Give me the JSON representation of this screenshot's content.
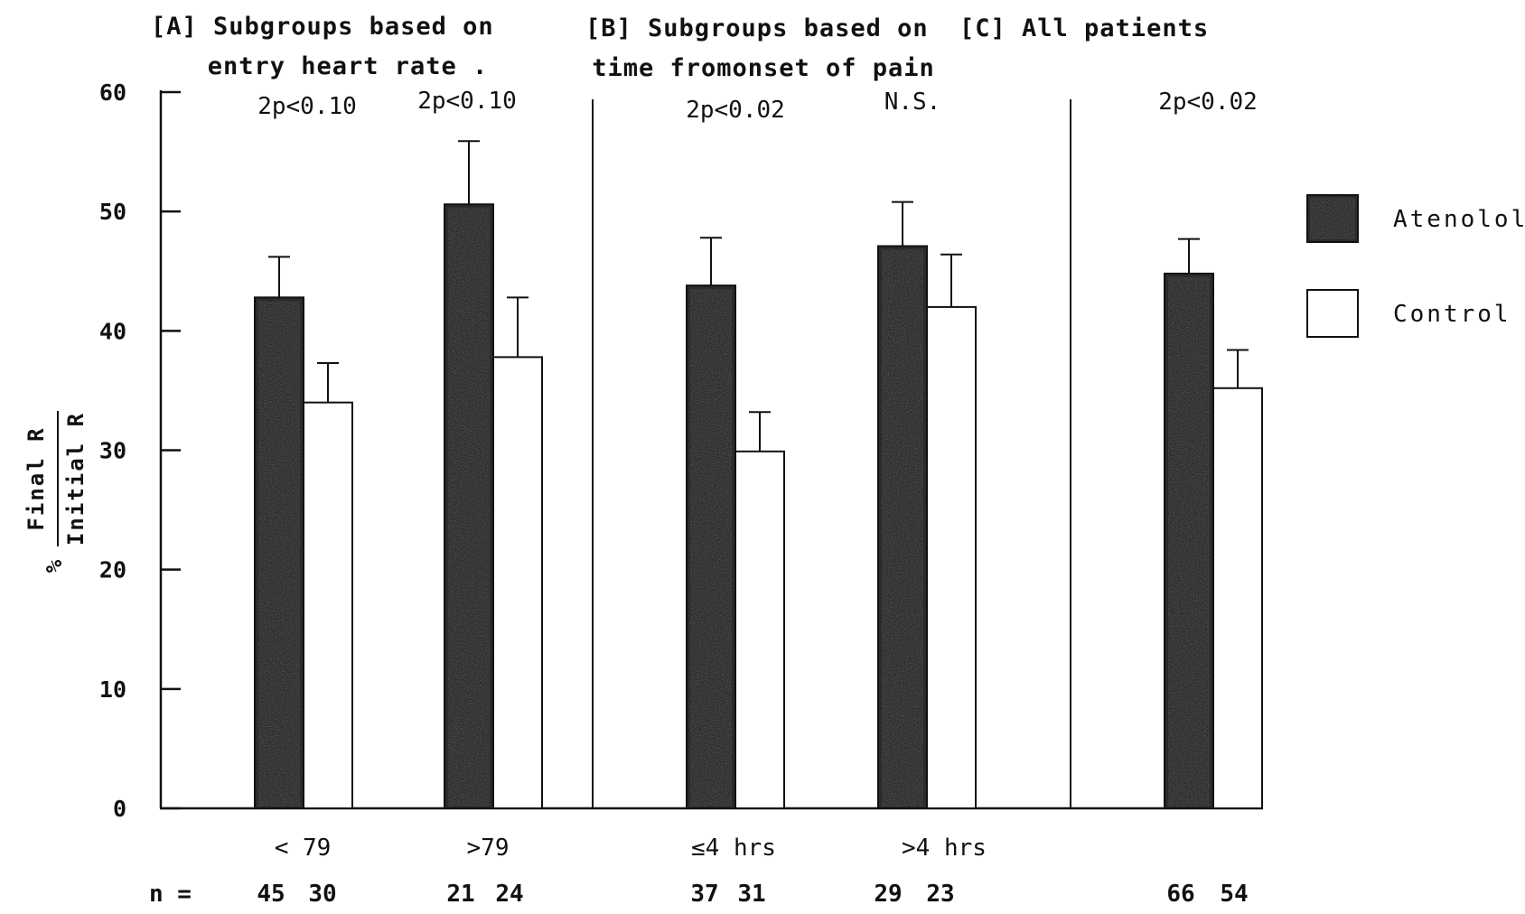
{
  "chart_data": {
    "type": "bar",
    "panels": [
      {
        "header": [
          "[A]  Subgroups based on",
          "entry heart rate ."
        ],
        "groups": [
          {
            "category": "< 79",
            "p_value": "2p<0.10",
            "n": [
              "45",
              "30"
            ],
            "atenolol": 42.8,
            "atenolol_err": 3.4,
            "control": 34.0,
            "control_err": 3.3
          },
          {
            "category": ">79",
            "p_value": "2p<0.10",
            "n": [
              "21",
              "24"
            ],
            "atenolol": 50.6,
            "atenolol_err": 5.3,
            "control": 37.8,
            "control_err": 5.0
          }
        ]
      },
      {
        "header": [
          "[B] Subgroups based on",
          "time fromonset of pain"
        ],
        "groups": [
          {
            "category": "≤4 hrs",
            "p_value": "2p<0.02",
            "n": [
              "37",
              "31"
            ],
            "atenolol": 43.8,
            "atenolol_err": 4.0,
            "control": 29.9,
            "control_err": 3.3
          },
          {
            "category": ">4 hrs",
            "p_value": "N.S.",
            "n": [
              "29",
              "23"
            ],
            "atenolol": 47.1,
            "atenolol_err": 3.7,
            "control": 42.0,
            "control_err": 4.4
          }
        ]
      },
      {
        "header": [
          "[C] All patients"
        ],
        "groups": [
          {
            "category": "",
            "p_value": "2p<0.02",
            "n": [
              "66",
              "54"
            ],
            "atenolol": 44.8,
            "atenolol_err": 2.9,
            "control": 35.2,
            "control_err": 3.2
          }
        ]
      }
    ],
    "series": [
      {
        "name": "Atenolol",
        "color": "#2b2b2b"
      },
      {
        "name": "Control",
        "color": "#ffffff"
      }
    ],
    "ylabel_prefix": "%",
    "ylabel_numerator": "Final R",
    "ylabel_denominator": "Initial R",
    "n_label": "n =",
    "yticks": [
      0,
      10,
      20,
      30,
      40,
      50,
      60
    ],
    "ylim": [
      0,
      60
    ],
    "legend_position": "right",
    "grid": false
  }
}
